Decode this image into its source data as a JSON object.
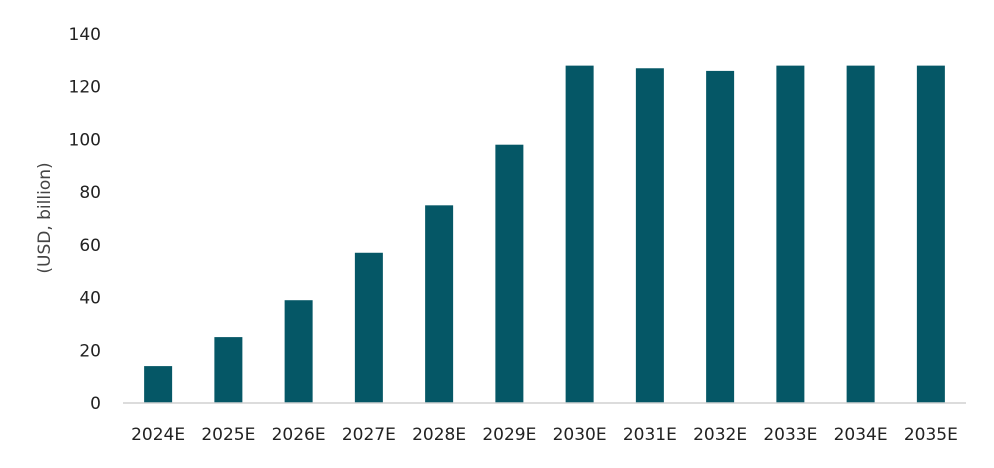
{
  "chart_data": {
    "type": "bar",
    "categories": [
      "2024E",
      "2025E",
      "2026E",
      "2027E",
      "2028E",
      "2029E",
      "2030E",
      "2031E",
      "2032E",
      "2033E",
      "2034E",
      "2035E"
    ],
    "values": [
      14,
      25,
      39,
      57,
      75,
      98,
      128,
      127,
      126,
      128,
      128,
      128
    ],
    "title": "",
    "xlabel": "",
    "ylabel": "(USD, billion)",
    "ylim": [
      0,
      140
    ],
    "yticks": [
      0,
      20,
      40,
      60,
      80,
      100,
      120,
      140
    ],
    "grid": false,
    "legend": "none",
    "bar_color": "#055766"
  }
}
